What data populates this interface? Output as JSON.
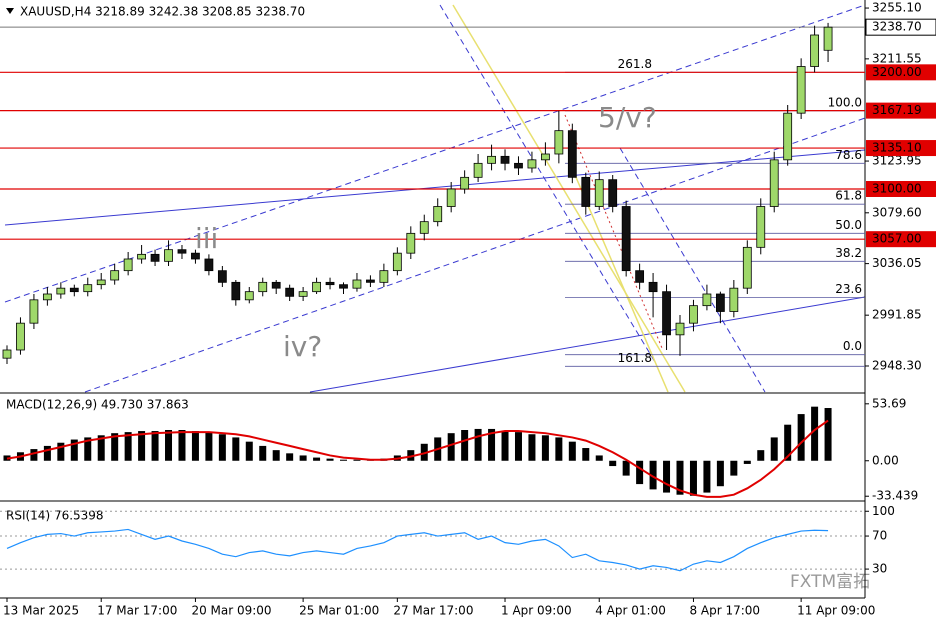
{
  "chart_data": [
    {
      "type": "candlestick",
      "title": "XAUUSD,H4  3218.89 3242.38 3208.85 3238.70",
      "categories": [
        "13 Mar 2025",
        null,
        null,
        null,
        null,
        null,
        null,
        "17 Mar 17:00",
        null,
        null,
        null,
        null,
        null,
        null,
        "20 Mar 09:00",
        null,
        null,
        null,
        null,
        null,
        null,
        null,
        "25 Mar 01:00",
        null,
        null,
        null,
        null,
        null,
        null,
        "27 Mar 17:00",
        null,
        null,
        null,
        null,
        null,
        null,
        null,
        "1 Apr 09:00",
        null,
        null,
        null,
        null,
        null,
        null,
        "4 Apr 01:00",
        null,
        null,
        null,
        null,
        null,
        null,
        "8 Apr 17:00",
        null,
        null,
        null,
        null,
        null,
        null,
        null,
        "11 Apr 09:00",
        null,
        null
      ],
      "open": [
        2955,
        2962,
        2985,
        3005,
        3010,
        3015,
        3012,
        3018,
        3022,
        3030,
        3040,
        3044,
        3038,
        3048,
        3045,
        3040,
        3030,
        3020,
        3005,
        3012,
        3020,
        3015,
        3008,
        3012,
        3020,
        3018,
        3015,
        3022,
        3020,
        3030,
        3045,
        3062,
        3072,
        3085,
        3100,
        3110,
        3122,
        3128,
        3122,
        3118,
        3125,
        3130,
        3150,
        3110,
        3085,
        3108,
        3085,
        3030,
        3020,
        3012,
        2975,
        2985,
        3000,
        3010,
        2995,
        3015,
        3050,
        3085,
        3125,
        3165,
        3205,
        3218.89
      ],
      "high": [
        2966,
        2990,
        3010,
        3016,
        3020,
        3018,
        3024,
        3028,
        3036,
        3046,
        3052,
        3048,
        3056,
        3052,
        3048,
        3044,
        3034,
        3022,
        3016,
        3024,
        3022,
        3018,
        3016,
        3024,
        3024,
        3020,
        3028,
        3026,
        3036,
        3050,
        3068,
        3078,
        3092,
        3106,
        3116,
        3130,
        3138,
        3134,
        3128,
        3132,
        3140,
        3167,
        3156,
        3114,
        3115,
        3112,
        3090,
        3036,
        3028,
        3018,
        2992,
        3005,
        3018,
        3012,
        3022,
        3056,
        3092,
        3132,
        3172,
        3212,
        3240,
        3242.38
      ],
      "low": [
        2950,
        2958,
        2980,
        3000,
        3006,
        3008,
        3008,
        3014,
        3018,
        3026,
        3036,
        3034,
        3034,
        3040,
        3036,
        3026,
        3016,
        3000,
        3002,
        3008,
        3010,
        3004,
        3004,
        3010,
        3014,
        3010,
        3012,
        3016,
        3016,
        3026,
        3040,
        3056,
        3068,
        3080,
        3096,
        3106,
        3116,
        3116,
        3112,
        3114,
        3120,
        3122,
        3105,
        3078,
        3082,
        3080,
        3025,
        3014,
        2990,
        2962,
        2957,
        2978,
        2996,
        2985,
        2990,
        3010,
        3044,
        3080,
        3120,
        3160,
        3200,
        3208.85
      ],
      "close": [
        2962,
        2985,
        3005,
        3010,
        3015,
        3012,
        3018,
        3022,
        3030,
        3040,
        3044,
        3038,
        3048,
        3045,
        3040,
        3030,
        3020,
        3005,
        3012,
        3020,
        3015,
        3008,
        3012,
        3020,
        3018,
        3015,
        3022,
        3020,
        3030,
        3045,
        3062,
        3072,
        3085,
        3100,
        3110,
        3122,
        3128,
        3122,
        3118,
        3125,
        3130,
        3150,
        3110,
        3085,
        3108,
        3085,
        3030,
        3020,
        3012,
        2975,
        2985,
        3000,
        3010,
        2995,
        3015,
        3050,
        3085,
        3125,
        3165,
        3205,
        3232,
        3238.7
      ],
      "bull_color": "#9fd86a",
      "bear_color": "#111111",
      "ylim": [
        2926,
        3262
      ],
      "yticks": [
        {
          "value": 3255.1,
          "label": "3255.10"
        },
        3211.55,
        3123.95,
        {
          "value": 3079.6,
          "label": "3079.60"
        },
        3036.05,
        2991.85,
        {
          "value": 2948.3,
          "label": "2948.30"
        }
      ],
      "levels": [
        {
          "value": 3200,
          "label": "3200.00"
        },
        {
          "value": 3167.19,
          "label": "3167.19"
        },
        {
          "value": 3135.1,
          "label": "3135.10"
        },
        {
          "value": 3100,
          "label": "3100.00"
        },
        {
          "value": 3057,
          "label": "3057.00"
        }
      ],
      "level_color": "#e00000",
      "current": {
        "value": 3238.7,
        "label": "3238.70"
      },
      "fib": [
        {
          "label": "261.8",
          "price": 3200
        },
        {
          "label": "100.0",
          "price": 3167
        },
        {
          "label": "78.6",
          "price": 3122
        },
        {
          "label": "61.8",
          "price": 3087
        },
        {
          "label": "50.0",
          "price": 3062
        },
        {
          "label": "38.2",
          "price": 3038
        },
        {
          "label": "23.6",
          "price": 3007
        },
        {
          "label": "0.0",
          "price": 2958
        },
        {
          "label": "161.8",
          "price": 2948
        }
      ],
      "annotations": [
        "iii",
        "iv?",
        "5/v?"
      ]
    },
    {
      "type": "macd",
      "title": "MACD(12,26,9) 49.730 37.863",
      "values": [
        5,
        8,
        11,
        14,
        17,
        20,
        22,
        24,
        26,
        27,
        28,
        28,
        29,
        29,
        28,
        27,
        25,
        22,
        18,
        14,
        10,
        7,
        5,
        3,
        2,
        1,
        1,
        1,
        2,
        5,
        10,
        16,
        22,
        26,
        29,
        30,
        30,
        28,
        27,
        25,
        24,
        22,
        18,
        12,
        5,
        -5,
        -14,
        -22,
        -27,
        -30,
        -32,
        -33,
        -30,
        -24,
        -14,
        -3,
        10,
        22,
        34,
        44,
        51,
        49.73
      ],
      "signal": [
        2,
        4,
        7,
        10,
        13,
        16,
        19,
        21,
        23,
        24,
        25,
        26,
        26.5,
        27,
        27,
        27,
        26,
        25,
        23,
        20,
        17,
        14,
        11,
        8,
        5,
        3,
        2,
        1,
        1,
        2,
        4,
        7,
        11,
        15,
        19,
        23,
        26,
        28,
        28,
        27,
        26,
        24,
        22,
        19,
        14,
        8,
        1,
        -7,
        -15,
        -22,
        -28,
        -32,
        -34,
        -34,
        -32,
        -26,
        -18,
        -8,
        4,
        17,
        29,
        37.863
      ],
      "color": "#000000",
      "signal_color": "#e00000",
      "ylim": [
        -37,
        62
      ],
      "yticks": [
        53.69,
        {
          "value": 0,
          "label": "0.00"
        },
        -33.439
      ]
    },
    {
      "type": "line",
      "title": "RSI(14) 76.5398",
      "values": [
        55,
        62,
        68,
        72,
        73,
        70,
        74,
        75,
        76,
        78,
        72,
        66,
        70,
        64,
        60,
        55,
        48,
        45,
        50,
        52,
        48,
        46,
        50,
        52,
        50,
        48,
        55,
        58,
        62,
        70,
        72,
        74,
        70,
        72,
        74,
        66,
        70,
        62,
        60,
        64,
        66,
        58,
        44,
        48,
        40,
        38,
        35,
        30,
        34,
        32,
        28,
        36,
        40,
        38,
        45,
        55,
        62,
        68,
        72,
        76,
        77,
        76.5398
      ],
      "color": "#1e90ff",
      "ylim": [
        -5,
        110
      ],
      "yticks": [
        100,
        70,
        30
      ]
    }
  ],
  "watermark": "FXTM富拓"
}
